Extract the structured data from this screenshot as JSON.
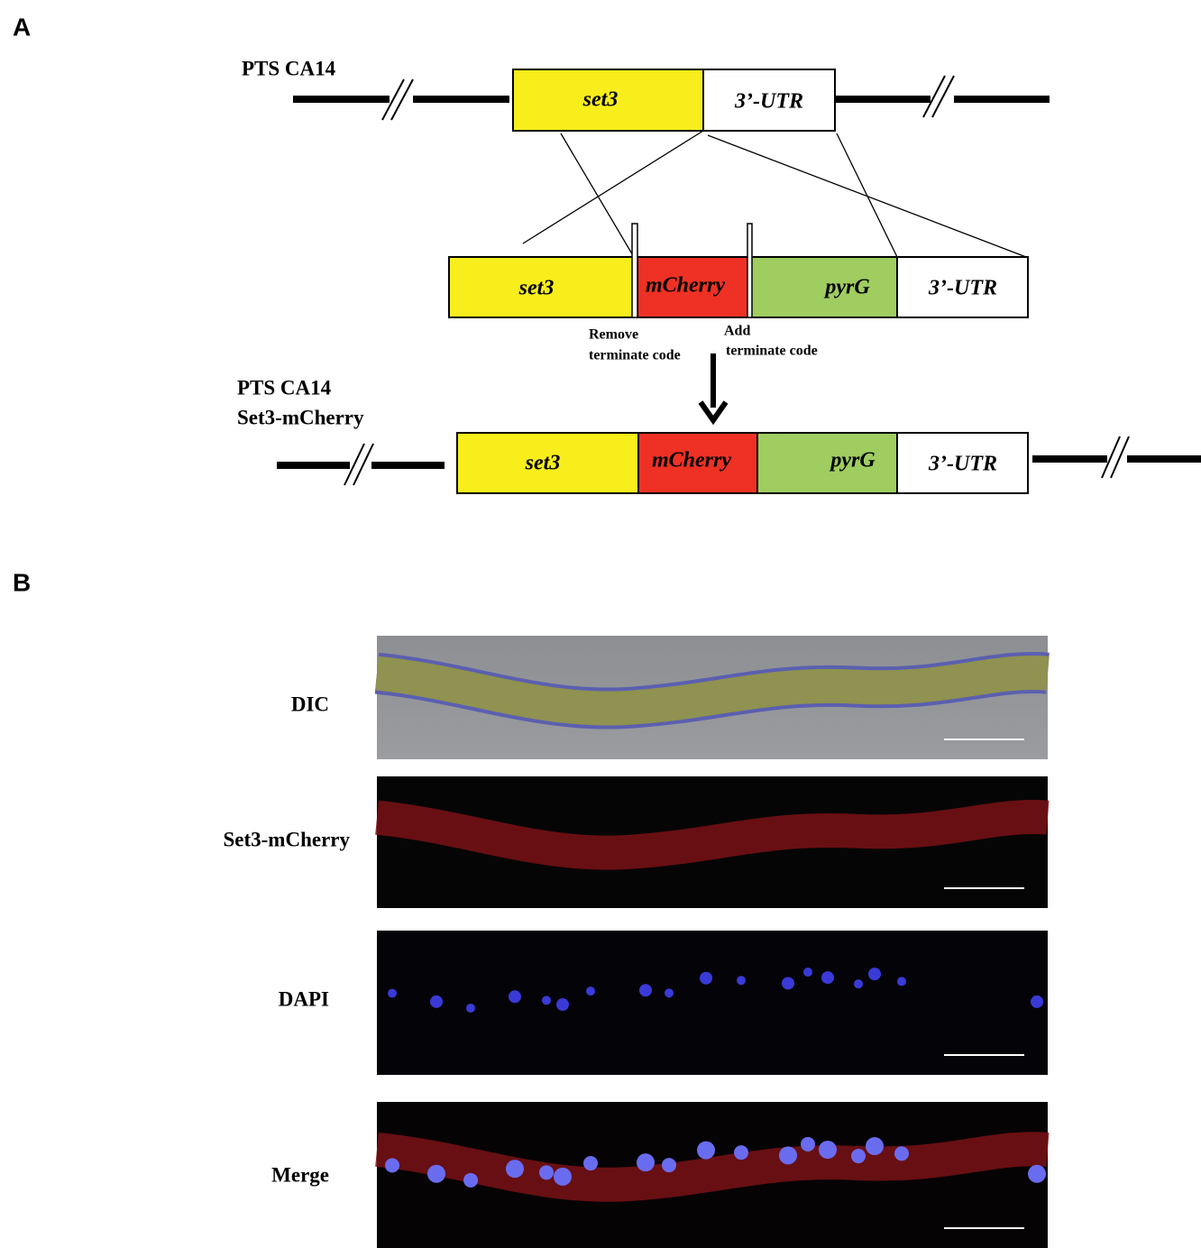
{
  "panels": {
    "a": "A",
    "b": "B"
  },
  "construct_top": {
    "label": "PTS CA14",
    "segments": [
      "set3",
      "3’-UTR"
    ]
  },
  "construct_middle": {
    "segments": [
      "set3",
      "mCherry",
      "pyrG",
      "3’-UTR"
    ],
    "remove_note": [
      "Remove",
      "terminate code"
    ],
    "add_note": [
      "Add",
      "terminate code"
    ]
  },
  "construct_bottom": {
    "label": [
      "PTS CA14",
      "Set3-mCherry"
    ],
    "segments": [
      "set3",
      "mCherry",
      "pyrG",
      "3’-UTR"
    ]
  },
  "micrographs": [
    "DIC",
    "Set3-mCherry",
    "DAPI",
    "Merge"
  ]
}
